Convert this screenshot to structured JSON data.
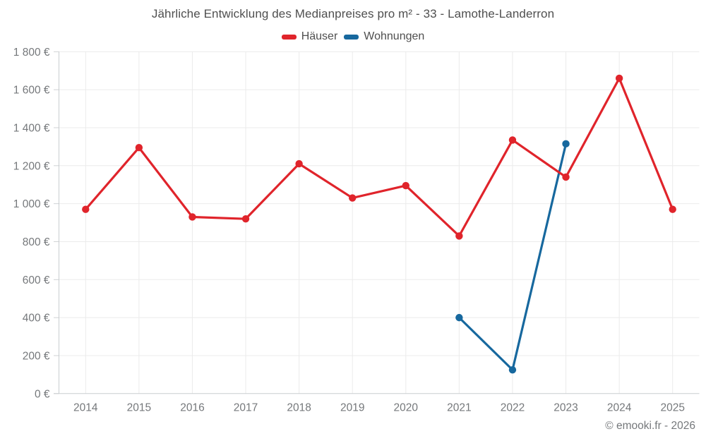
{
  "title": "Jährliche Entwicklung des Medianpreises pro m² - 33 - Lamothe-Landerron",
  "legend": {
    "items": [
      {
        "label": "Häuser",
        "color": "#e0242b"
      },
      {
        "label": "Wohnungen",
        "color": "#17689e"
      }
    ]
  },
  "copyright": "© emooki.fr - 2026",
  "colors": {
    "grid": "#ebebeb",
    "axis": "#c9cdd0",
    "tick": "#cfd2d4",
    "background": "#ffffff",
    "haeuser": "#e0242b",
    "wohnungen": "#17689e"
  },
  "chart_data": {
    "type": "line",
    "title": "Jährliche Entwicklung des Medianpreises pro m² - 33 - Lamothe-Landerron",
    "categories": [
      "2014",
      "2015",
      "2016",
      "2017",
      "2018",
      "2019",
      "2020",
      "2021",
      "2022",
      "2023",
      "2024",
      "2025"
    ],
    "series": [
      {
        "name": "Häuser",
        "color": "#e0242b",
        "values": [
          970,
          1295,
          930,
          920,
          1210,
          1030,
          1095,
          830,
          1335,
          1140,
          1660,
          970
        ]
      },
      {
        "name": "Wohnungen",
        "color": "#17689e",
        "values": [
          null,
          null,
          null,
          null,
          null,
          null,
          null,
          400,
          125,
          1315,
          null,
          null
        ]
      }
    ],
    "xlabel": "",
    "ylabel": "",
    "ylim": [
      0,
      1800
    ],
    "ytick_step": 200,
    "ytick_labels": [
      "0 €",
      "200 €",
      "400 €",
      "600 €",
      "800 €",
      "1 000 €",
      "1 200 €",
      "1 400 €",
      "1 600 €",
      "1 800 €"
    ],
    "grid": true,
    "legend_position": "top",
    "unit": "€"
  }
}
